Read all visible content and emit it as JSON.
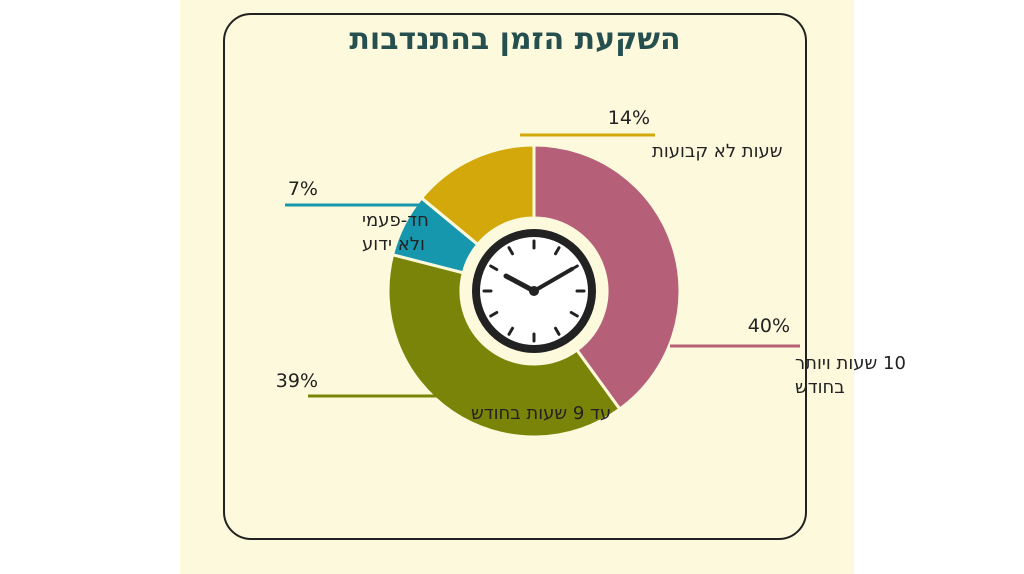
{
  "chart_data": {
    "type": "pie",
    "title": "השקעת הזמן בהתנדבות",
    "slices": [
      {
        "label_lines": [
          "10 שעות ויותר",
          "בחודש"
        ],
        "value": 40,
        "value_label": "40%",
        "color": "#b55f78"
      },
      {
        "label_lines": [
          "עד 9 שעות בחודש"
        ],
        "value": 39,
        "value_label": "39%",
        "color": "#7a8408"
      },
      {
        "label_lines": [
          "חד-פעמי",
          "ולא ידוע"
        ],
        "value": 7,
        "value_label": "7%",
        "color": "#1697ad"
      },
      {
        "label_lines": [
          "שעות לא קבועות"
        ],
        "value": 14,
        "value_label": "14%",
        "color": "#d2a80a"
      }
    ],
    "center_icon": "clock-icon"
  }
}
